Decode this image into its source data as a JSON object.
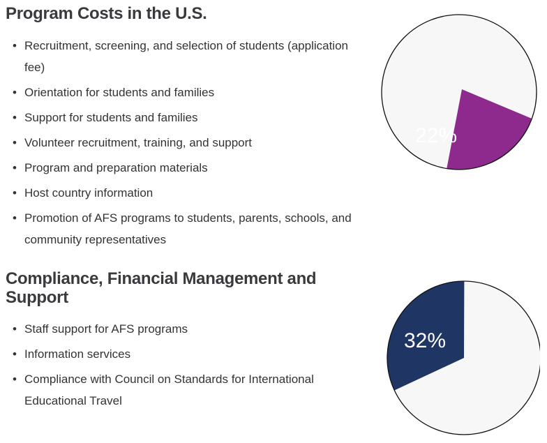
{
  "sections": [
    {
      "title": "Program Costs in the U.S.",
      "items": [
        "Recruitment, screening, and selection of students (application fee)",
        "Orientation for students and families",
        "Support for students and families",
        "Volunteer recruitment, training, and support",
        "Program and preparation materials",
        "Host country information",
        "Promotion of AFS programs to students, parents, schools, and community representatives"
      ],
      "pie": {
        "label": "22%",
        "value": 22,
        "color": "#8e2a8e"
      }
    },
    {
      "title": "Compliance, Financial Management and Support",
      "items": [
        "Staff support for AFS programs",
        "Information services",
        "Compliance with Council on Standards for International Educational Travel"
      ],
      "pie": {
        "label": "32%",
        "value": 32,
        "color": "#1f3665"
      }
    }
  ],
  "colors": {
    "pie_background": "#f7f7f7",
    "pie_outline": "#111111",
    "pie_label": "#ffffff"
  }
}
